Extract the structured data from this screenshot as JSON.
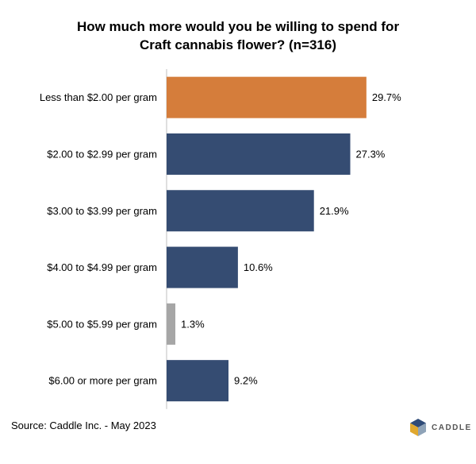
{
  "chart_data": {
    "type": "bar",
    "orientation": "horizontal",
    "title_line1": "How much more would you be willing to spend for",
    "title_line2": "Craft cannabis flower? (n=316)",
    "categories": [
      "Less than $2.00 per gram",
      "$2.00 to $2.99 per gram",
      "$3.00 to $3.99 per gram",
      "$4.00 to $4.99 per gram",
      "$5.00 to $5.99 per gram",
      "$6.00 or more per gram"
    ],
    "values": [
      29.7,
      27.3,
      21.9,
      10.6,
      1.3,
      9.2
    ],
    "labels": [
      "29.7%",
      "27.3%",
      "21.9%",
      "10.6%",
      "1.3%",
      "9.2%"
    ],
    "colors": [
      "#d57d3b",
      "#354c72",
      "#354c72",
      "#354c72",
      "#a6a6a6",
      "#354c72"
    ],
    "xlim": [
      0,
      35
    ],
    "grid": false,
    "legend": "none"
  },
  "source": "Source: Caddle Inc. - May 2023",
  "logo": {
    "text": "CADDLE",
    "icon": "caddle-cube-icon"
  }
}
